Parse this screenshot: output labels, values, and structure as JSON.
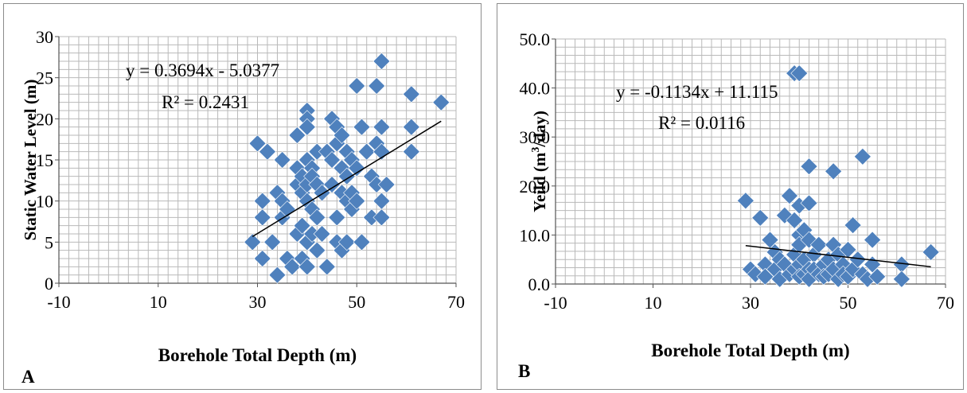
{
  "chart_data": [
    {
      "type": "scatter",
      "panel_label": "A",
      "xlabel": "Borehole Total Depth (m)",
      "ylabel": "Static Water Level (m)",
      "xlim": [
        -10,
        70
      ],
      "ylim": [
        0,
        30
      ],
      "xticks": [
        -10,
        10,
        30,
        50,
        70
      ],
      "yticks": [
        0,
        5,
        10,
        15,
        20,
        25,
        30
      ],
      "ytick_labels": [
        "0",
        "5",
        "10",
        "15",
        "20",
        "25",
        "30"
      ],
      "grid": true,
      "marker_color": "#4f81bd",
      "trendline_color": "#000000",
      "equation": "y = 0.3694x - 5.0377",
      "r_squared": "R² = 0.2431",
      "trendline": {
        "slope": 0.3694,
        "intercept": -5.0377,
        "x_range": [
          29,
          67
        ]
      },
      "points": [
        [
          30,
          17
        ],
        [
          32,
          16
        ],
        [
          35,
          15
        ],
        [
          29,
          5
        ],
        [
          31,
          10
        ],
        [
          31,
          8
        ],
        [
          31,
          3
        ],
        [
          33,
          5
        ],
        [
          34,
          11
        ],
        [
          34,
          1
        ],
        [
          35,
          10
        ],
        [
          35,
          8
        ],
        [
          36,
          9
        ],
        [
          36,
          3
        ],
        [
          37,
          2
        ],
        [
          38,
          18
        ],
        [
          38,
          14
        ],
        [
          38,
          12
        ],
        [
          38,
          6
        ],
        [
          39,
          13
        ],
        [
          39,
          11
        ],
        [
          39,
          7
        ],
        [
          39,
          3
        ],
        [
          40,
          21
        ],
        [
          40,
          20
        ],
        [
          40,
          19
        ],
        [
          40,
          15
        ],
        [
          40,
          12
        ],
        [
          40,
          10
        ],
        [
          40,
          5
        ],
        [
          40,
          2
        ],
        [
          41,
          14
        ],
        [
          41,
          13
        ],
        [
          41,
          9
        ],
        [
          41,
          6
        ],
        [
          42,
          16
        ],
        [
          42,
          12
        ],
        [
          42,
          8
        ],
        [
          42,
          4
        ],
        [
          43,
          6
        ],
        [
          43,
          11
        ],
        [
          44,
          16
        ],
        [
          44,
          2
        ],
        [
          45,
          20
        ],
        [
          45,
          15
        ],
        [
          45,
          12
        ],
        [
          46,
          19
        ],
        [
          46,
          17
        ],
        [
          46,
          8
        ],
        [
          46,
          5
        ],
        [
          47,
          18
        ],
        [
          47,
          14
        ],
        [
          47,
          11
        ],
        [
          47,
          4
        ],
        [
          48,
          16
        ],
        [
          48,
          13
        ],
        [
          48,
          10
        ],
        [
          48,
          5
        ],
        [
          49,
          15
        ],
        [
          49,
          11
        ],
        [
          49,
          9
        ],
        [
          50,
          24
        ],
        [
          50,
          14
        ],
        [
          50,
          10
        ],
        [
          51,
          19
        ],
        [
          51,
          5
        ],
        [
          52,
          16
        ],
        [
          53,
          13
        ],
        [
          53,
          8
        ],
        [
          54,
          24
        ],
        [
          54,
          17
        ],
        [
          54,
          12
        ],
        [
          55,
          27
        ],
        [
          55,
          19
        ],
        [
          55,
          16
        ],
        [
          55,
          10
        ],
        [
          55,
          8
        ],
        [
          56,
          12
        ],
        [
          61,
          23
        ],
        [
          61,
          19
        ],
        [
          61,
          16
        ],
        [
          67,
          22
        ]
      ]
    },
    {
      "type": "scatter",
      "panel_label": "B",
      "xlabel": "Borehole Total Depth (m)",
      "ylabel_main": "Yeild (m",
      "ylabel_sup": "3",
      "ylabel_tail": "/day)",
      "xlim": [
        -10,
        70
      ],
      "ylim": [
        0,
        50
      ],
      "xticks": [
        -10,
        10,
        30,
        50,
        70
      ],
      "yticks": [
        0,
        10,
        20,
        30,
        40,
        50
      ],
      "ytick_labels": [
        "0.0",
        "10.0",
        "20.0",
        "30.0",
        "40.0",
        "50.0"
      ],
      "grid": true,
      "marker_color": "#4f81bd",
      "trendline_color": "#000000",
      "equation": "y = -0.1134x + 11.115",
      "r_squared": "R² = 0.0116",
      "trendline": {
        "slope": -0.1134,
        "intercept": 11.115,
        "x_range": [
          29,
          67
        ]
      },
      "points": [
        [
          39,
          43
        ],
        [
          40,
          43
        ],
        [
          29,
          17
        ],
        [
          32,
          13.5
        ],
        [
          34,
          9
        ],
        [
          35,
          6.5
        ],
        [
          30,
          3
        ],
        [
          31,
          2
        ],
        [
          33,
          4
        ],
        [
          33,
          1.5
        ],
        [
          35,
          3
        ],
        [
          36,
          1
        ],
        [
          36,
          5
        ],
        [
          37,
          14
        ],
        [
          37,
          4
        ],
        [
          38,
          18
        ],
        [
          38,
          2
        ],
        [
          39,
          13
        ],
        [
          39,
          6
        ],
        [
          39,
          3
        ],
        [
          40,
          16
        ],
        [
          40,
          10
        ],
        [
          40,
          8
        ],
        [
          40,
          4
        ],
        [
          40,
          1.5
        ],
        [
          41,
          11
        ],
        [
          41,
          5
        ],
        [
          41,
          2
        ],
        [
          42,
          24
        ],
        [
          42,
          16.5
        ],
        [
          42,
          9
        ],
        [
          42,
          3
        ],
        [
          42,
          1
        ],
        [
          43,
          6
        ],
        [
          43,
          3
        ],
        [
          44,
          8
        ],
        [
          44,
          2
        ],
        [
          45,
          4
        ],
        [
          45,
          1.5
        ],
        [
          46,
          5
        ],
        [
          46,
          2
        ],
        [
          47,
          23
        ],
        [
          47,
          8
        ],
        [
          47,
          3
        ],
        [
          48,
          6
        ],
        [
          48,
          1
        ],
        [
          49,
          4
        ],
        [
          49,
          2
        ],
        [
          50,
          7
        ],
        [
          50,
          1.5
        ],
        [
          51,
          12
        ],
        [
          51,
          3
        ],
        [
          52,
          5
        ],
        [
          53,
          26
        ],
        [
          53,
          2
        ],
        [
          54,
          1
        ],
        [
          55,
          9
        ],
        [
          55,
          4
        ],
        [
          56,
          1.5
        ],
        [
          61,
          4
        ],
        [
          61,
          1
        ],
        [
          67,
          6.5
        ]
      ]
    }
  ]
}
